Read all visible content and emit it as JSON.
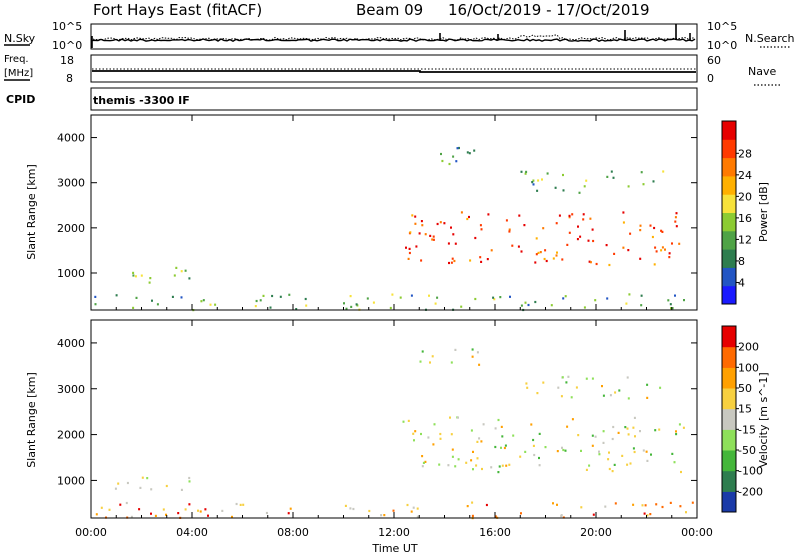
{
  "header": {
    "title": "Fort Hays East (fitACF)",
    "beam": "Beam 09",
    "date_range": "16/Oct/2019 - 17/Oct/2019"
  },
  "panels": {
    "nsky": {
      "left_label": "N.Sky",
      "right_label": "N.Search",
      "left_ticks": [
        "10^5",
        "10^0"
      ],
      "right_ticks": [
        "10^5",
        "10^0"
      ]
    },
    "freq": {
      "left_label_1": "Freq.",
      "left_label_2": "[MHz]",
      "right_label": "Nave",
      "left_ticks": [
        "18",
        "8"
      ],
      "right_ticks": [
        "60",
        "0"
      ]
    },
    "cpid": {
      "label": "CPID",
      "value": "themis -3300 IF"
    }
  },
  "chart_data": [
    {
      "type": "heatmap",
      "title": "",
      "ylabel": "Slant Range [km]",
      "xlabel": "Time UT",
      "xlim": [
        "00:00",
        "00:00"
      ],
      "ylim": [
        180,
        4500
      ],
      "x_ticks": [
        "00:00",
        "04:00",
        "08:00",
        "12:00",
        "16:00",
        "20:00",
        "00:00"
      ],
      "y_ticks": [
        1000,
        2000,
        3000,
        4000
      ],
      "colorbar": {
        "label": "Power [dB]",
        "ticks": [
          "4",
          "8",
          "12",
          "16",
          "20",
          "24",
          "28"
        ],
        "colors": [
          "#1a1aff",
          "#2255c4",
          "#2e7d4f",
          "#4fa346",
          "#8ccb32",
          "#f7e23a",
          "#ffb000",
          "#ff7a00",
          "#ff3a00",
          "#e60000"
        ]
      },
      "regions": [
        {
          "t_start": 0.3,
          "t_end": 4.0,
          "r_start": 800,
          "r_end": 1150,
          "level": 4
        },
        {
          "t_start": 0.0,
          "t_end": 23.9,
          "r_start": 200,
          "r_end": 550,
          "level": 3
        },
        {
          "t_start": 12.3,
          "t_end": 23.5,
          "r_start": 1200,
          "r_end": 2400,
          "level": 8
        },
        {
          "t_start": 13.0,
          "t_end": 15.5,
          "r_start": 3400,
          "r_end": 3900,
          "level": 2
        },
        {
          "t_start": 17.0,
          "t_end": 22.8,
          "r_start": 2800,
          "r_end": 3300,
          "level": 3
        }
      ]
    },
    {
      "type": "heatmap",
      "title": "",
      "ylabel": "Slant Range [km]",
      "xlabel": "Time UT",
      "xlim": [
        "00:00",
        "00:00"
      ],
      "ylim": [
        180,
        4500
      ],
      "x_ticks": [
        "00:00",
        "04:00",
        "08:00",
        "12:00",
        "16:00",
        "20:00",
        "00:00"
      ],
      "y_ticks": [
        1000,
        2000,
        3000,
        4000
      ],
      "colorbar": {
        "label": "Velocity [m s^-1]",
        "ticks": [
          "200",
          "100",
          "50",
          "15",
          "-15",
          "-50",
          "-100",
          "-200"
        ],
        "colors": [
          "#1a3aa8",
          "#2e7d4f",
          "#44b63a",
          "#8ee05a",
          "#c8c8c0",
          "#f7d040",
          "#ffa000",
          "#ff6a00",
          "#e60000"
        ]
      },
      "regions": [
        {
          "t_start": 0.3,
          "t_end": 4.0,
          "r_start": 800,
          "r_end": 1150,
          "level": 4
        },
        {
          "t_start": 0.0,
          "t_end": 23.9,
          "r_start": 200,
          "r_end": 550,
          "level": 6
        },
        {
          "t_start": 12.3,
          "t_end": 23.5,
          "r_start": 1200,
          "r_end": 2400,
          "level": 4
        },
        {
          "t_start": 13.0,
          "t_end": 15.5,
          "r_start": 3400,
          "r_end": 3900,
          "level": 4
        },
        {
          "t_start": 17.0,
          "t_end": 22.8,
          "r_start": 2800,
          "r_end": 3300,
          "level": 4
        }
      ]
    }
  ]
}
